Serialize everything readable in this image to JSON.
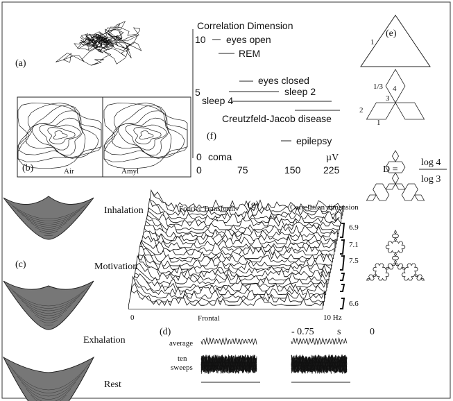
{
  "panel_a": {
    "label": "(a)"
  },
  "panel_b": {
    "label": "(b)",
    "left": "Air",
    "right": "Amyl"
  },
  "panel_c": {
    "label": "(c)",
    "states": [
      "Inhalation",
      "Motivation",
      "Exhalation",
      "Rest"
    ]
  },
  "panel_f": {
    "label": "(f)",
    "title": "Correlation Dimension",
    "y_labels": [
      "10",
      "5",
      "0"
    ],
    "x_labels": [
      "0",
      "75",
      "150",
      "225"
    ],
    "unit": "µV",
    "items": [
      "eyes open",
      "REM",
      "eyes closed",
      "sleep 2",
      "sleep 4",
      "Creutzfeld-Jacob disease",
      "epilepsy",
      "coma"
    ]
  },
  "panel_e": {
    "label": "(e)",
    "triangle_side": "1",
    "star_labels": [
      "1/3",
      "4",
      "3",
      "2",
      "1"
    ],
    "formula": {
      "lhs": "D =",
      "numerator": "log 4",
      "denominator": "log 3"
    }
  },
  "panel_g": {
    "label": "(g)",
    "left_title": "Fourier Transform",
    "right_title": "Correlation dimension",
    "dimensions": [
      "6.9",
      "7.1",
      "7.5",
      "6.6"
    ],
    "x_start": "0",
    "x_name": "Frontal",
    "x_end": "10 Hz"
  },
  "panel_d": {
    "label": "(d)",
    "time_start": "- 0.75",
    "time_unit": "s",
    "time_end": "0",
    "average": "average",
    "sweeps_line1": "ten",
    "sweeps_line2": "sweeps"
  }
}
